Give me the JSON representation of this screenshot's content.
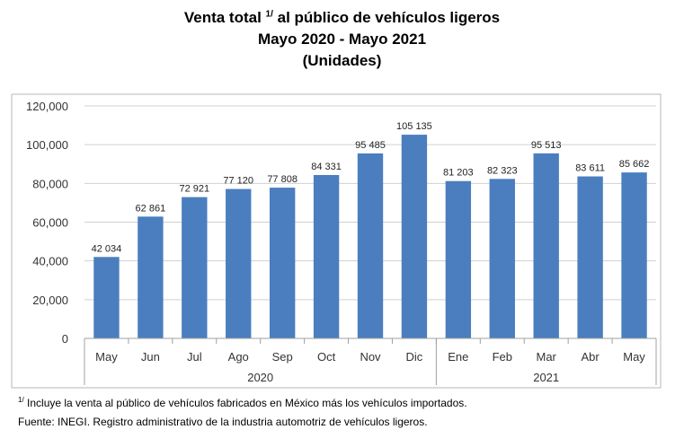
{
  "title": {
    "line1": "Venta total",
    "line1_sup": "1/",
    "line1_rest": "al público de vehículos ligeros",
    "line2": "Mayo 2020 - Mayo 2021",
    "line3": "(Unidades)"
  },
  "chart_data": {
    "type": "bar",
    "categories": [
      "May",
      "Jun",
      "Jul",
      "Ago",
      "Sep",
      "Oct",
      "Nov",
      "Dic",
      "Ene",
      "Feb",
      "Mar",
      "Abr",
      "May"
    ],
    "values": [
      42034,
      62861,
      72921,
      77120,
      77808,
      84331,
      95485,
      105135,
      81203,
      82323,
      95513,
      83611,
      85662
    ],
    "data_labels": [
      "42 034",
      "62 861",
      "72 921",
      "77 120",
      "77 808",
      "84 331",
      "95 485",
      "105 135",
      "81 203",
      "82 323",
      "95 513",
      "83 611",
      "85 662"
    ],
    "ylim": [
      0,
      120000
    ],
    "yticks": [
      0,
      20000,
      40000,
      60000,
      80000,
      100000,
      120000
    ],
    "ytick_labels": [
      "0",
      "20,000",
      "40,000",
      "60,000",
      "80,000",
      "100,000",
      "120,000"
    ],
    "year_groups": [
      {
        "label": "2020",
        "from": 0,
        "to": 7
      },
      {
        "label": "2021",
        "from": 8,
        "to": 12
      }
    ],
    "bar_color": "#4a7ebf",
    "grid": true,
    "xlabel": "",
    "ylabel": ""
  },
  "notes": {
    "note1_sup": "1/",
    "note1": "Incluye la venta al público de vehículos fabricados en México más los vehículos importados.",
    "note2": "Fuente: INEGI. Registro administrativo de la industria automotriz de vehículos ligeros."
  }
}
